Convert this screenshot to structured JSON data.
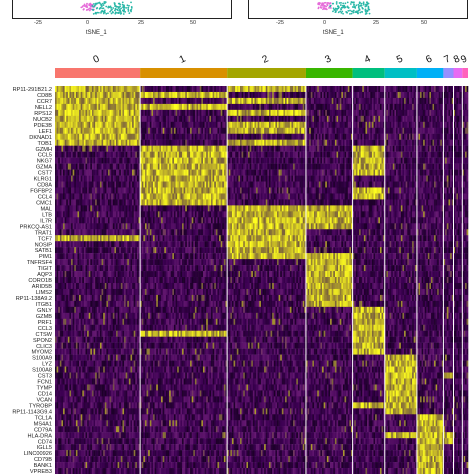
{
  "tsne_panels": [
    {
      "x_ticks": [
        "-25",
        "0",
        "25",
        "50"
      ],
      "x_label": "tSNE_1"
    },
    {
      "x_ticks": [
        "-25",
        "0",
        "25",
        "50"
      ],
      "x_label": "tSNE_1"
    }
  ],
  "chart_data": {
    "type": "heatmap",
    "clusters": [
      {
        "label": "0",
        "color": "#F8766D",
        "cells": 135
      },
      {
        "label": "1",
        "color": "#D89000",
        "cells": 138
      },
      {
        "label": "2",
        "color": "#A3A500",
        "cells": 125
      },
      {
        "label": "3",
        "color": "#39B600",
        "cells": 74
      },
      {
        "label": "4",
        "color": "#00BF7D",
        "cells": 51
      },
      {
        "label": "5",
        "color": "#00BFC4",
        "cells": 51
      },
      {
        "label": "6",
        "color": "#00B0F6",
        "cells": 42
      },
      {
        "label": "7",
        "color": "#9590FF",
        "cells": 16
      },
      {
        "label": "8",
        "color": "#E76BF3",
        "cells": 14
      },
      {
        "label": "9",
        "color": "#FF62BC",
        "cells": 9
      }
    ],
    "genes": [
      {
        "name": "RP11-291B21.2",
        "high": [
          0,
          2
        ]
      },
      {
        "name": "CD8B",
        "high": [
          0,
          1
        ]
      },
      {
        "name": "CCR7",
        "high": [
          0,
          2
        ]
      },
      {
        "name": "NELL2",
        "high": [
          0,
          1
        ]
      },
      {
        "name": "RPS12",
        "high": [
          0,
          2
        ]
      },
      {
        "name": "NUCB2",
        "high": [
          0
        ]
      },
      {
        "name": "PDE3B",
        "high": [
          0,
          2
        ]
      },
      {
        "name": "LEF1",
        "high": [
          0,
          2
        ]
      },
      {
        "name": "DKNAD1",
        "high": [
          0
        ]
      },
      {
        "name": "TOB1",
        "high": [
          0,
          2
        ]
      },
      {
        "name": "GZMH",
        "high": [
          1,
          4
        ]
      },
      {
        "name": "CCL5",
        "high": [
          1,
          4
        ]
      },
      {
        "name": "NKG7",
        "high": [
          1,
          4
        ]
      },
      {
        "name": "GZMA",
        "high": [
          1,
          4
        ]
      },
      {
        "name": "CST7",
        "high": [
          1,
          4
        ]
      },
      {
        "name": "KLRG1",
        "high": [
          1
        ]
      },
      {
        "name": "CD8A",
        "high": [
          1
        ]
      },
      {
        "name": "FGFBP2",
        "high": [
          1,
          4
        ]
      },
      {
        "name": "CCL4",
        "high": [
          1,
          4
        ]
      },
      {
        "name": "CMC1",
        "high": [
          1
        ]
      },
      {
        "name": "MAL",
        "high": [
          2,
          3
        ]
      },
      {
        "name": "LTB",
        "high": [
          2,
          3
        ]
      },
      {
        "name": "IL7R",
        "high": [
          2,
          3
        ]
      },
      {
        "name": "PRKCQ-AS1",
        "high": [
          2,
          3
        ]
      },
      {
        "name": "TRAT1",
        "high": [
          2
        ]
      },
      {
        "name": "TCF7",
        "high": [
          0,
          2
        ]
      },
      {
        "name": "NOSIP",
        "high": [
          2
        ]
      },
      {
        "name": "SATB1",
        "high": [
          2
        ]
      },
      {
        "name": "PIM1",
        "high": [
          2,
          3
        ]
      },
      {
        "name": "TNFRSF4",
        "high": [
          3
        ]
      },
      {
        "name": "TIGIT",
        "high": [
          3
        ]
      },
      {
        "name": "AQP3",
        "high": [
          3
        ]
      },
      {
        "name": "CORO1B",
        "high": [
          3
        ]
      },
      {
        "name": "ARID5B",
        "high": [
          3
        ]
      },
      {
        "name": "LIMS2",
        "high": [
          3
        ]
      },
      {
        "name": "RP11-138A9.2",
        "high": [
          3
        ]
      },
      {
        "name": "ITGB1",
        "high": [
          3
        ]
      },
      {
        "name": "GNLY",
        "high": [
          4
        ]
      },
      {
        "name": "GZMB",
        "high": [
          4
        ]
      },
      {
        "name": "PRF1",
        "high": [
          4
        ]
      },
      {
        "name": "CCL3",
        "high": [
          4
        ]
      },
      {
        "name": "CTSW",
        "high": [
          1,
          4
        ]
      },
      {
        "name": "SPON2",
        "high": [
          4
        ]
      },
      {
        "name": "CLIC3",
        "high": [
          4
        ]
      },
      {
        "name": "MYOM2",
        "high": [
          4
        ]
      },
      {
        "name": "S100A9",
        "high": [
          5
        ]
      },
      {
        "name": "LYZ",
        "high": [
          5
        ]
      },
      {
        "name": "S100A8",
        "high": [
          5
        ]
      },
      {
        "name": "CST3",
        "high": [
          5,
          7
        ]
      },
      {
        "name": "FCN1",
        "high": [
          5
        ]
      },
      {
        "name": "TYMP",
        "high": [
          5
        ]
      },
      {
        "name": "CD14",
        "high": [
          5
        ]
      },
      {
        "name": "VCAN",
        "high": [
          5
        ]
      },
      {
        "name": "TYROBP",
        "high": [
          4,
          5
        ]
      },
      {
        "name": "RP11-1143G9.4",
        "high": [
          5
        ]
      },
      {
        "name": "TCL1A",
        "high": [
          6
        ]
      },
      {
        "name": "MS4A1",
        "high": [
          6
        ]
      },
      {
        "name": "CD79A",
        "high": [
          6
        ]
      },
      {
        "name": "HLA-DRA",
        "high": [
          5,
          6,
          7
        ]
      },
      {
        "name": "CD74",
        "high": [
          6,
          7
        ]
      },
      {
        "name": "IGLL5",
        "high": [
          6
        ]
      },
      {
        "name": "LINC00926",
        "high": [
          6
        ]
      },
      {
        "name": "CD79B",
        "high": [
          6
        ]
      },
      {
        "name": "BANK1",
        "high": [
          6
        ]
      },
      {
        "name": "VPREB3",
        "high": [
          6
        ]
      }
    ]
  }
}
